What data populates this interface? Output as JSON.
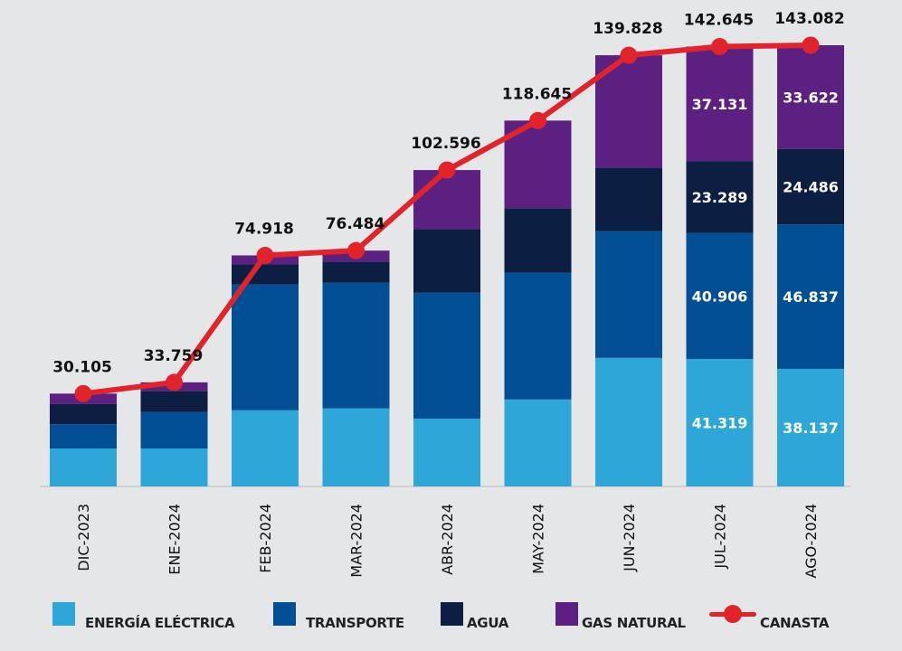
{
  "chart_data": {
    "type": "bar",
    "stacked": true,
    "title": "",
    "xlabel": "",
    "ylabel": "",
    "grid": false,
    "legend_position": "bottom",
    "categories": [
      "DIC-2023",
      "ENE-2024",
      "FEB-2024",
      "MAR-2024",
      "ABR-2024",
      "MAY-2024",
      "JUN-2024",
      "JUL-2024",
      "AGO-2024"
    ],
    "ylim": [
      0,
      143.082
    ],
    "series": [
      {
        "name": "ENERGÍA ELÉCTRICA",
        "type": "bar",
        "color": "#2ea7d8",
        "values": [
          12.3,
          12.3,
          24.7,
          25.3,
          22.0,
          28.2,
          41.7,
          41.319,
          38.137
        ],
        "labels": [
          null,
          null,
          null,
          null,
          null,
          null,
          null,
          "41.319",
          "38.137"
        ]
      },
      {
        "name": "TRANSPORTE",
        "type": "bar",
        "color": "#034f96",
        "values": [
          7.9,
          11.8,
          40.8,
          40.8,
          40.8,
          41.1,
          41.1,
          40.906,
          46.837
        ],
        "labels": [
          null,
          null,
          null,
          null,
          null,
          null,
          null,
          "40.906",
          "46.837"
        ]
      },
      {
        "name": "AGUA",
        "type": "bar",
        "color": "#0c1f43",
        "values": [
          6.5,
          6.8,
          6.5,
          6.8,
          20.6,
          20.9,
          20.6,
          23.289,
          24.486
        ],
        "labels": [
          null,
          null,
          null,
          null,
          null,
          null,
          null,
          "23.289",
          "24.486"
        ]
      },
      {
        "name": "GAS NATURAL",
        "type": "bar",
        "color": "#5c2180",
        "values": [
          3.405,
          2.859,
          2.918,
          3.584,
          19.196,
          28.445,
          36.428,
          37.131,
          33.622
        ],
        "labels": [
          null,
          null,
          null,
          null,
          null,
          null,
          null,
          "37.131",
          "33.622"
        ]
      },
      {
        "name": "CANASTA",
        "type": "line",
        "color": "#e1232b",
        "values": [
          30.105,
          33.759,
          74.918,
          76.484,
          102.596,
          118.645,
          139.828,
          142.645,
          143.082
        ],
        "labels": [
          "30.105",
          "33.759",
          "74.918",
          "76.484",
          "102.596",
          "118.645",
          "139.828",
          "142.645",
          "143.082"
        ]
      }
    ]
  },
  "legend": {
    "items": [
      {
        "label": "ENERGÍA ELÉCTRICA",
        "color": "#2ea7d8",
        "kind": "swatch"
      },
      {
        "label": "TRANSPORTE",
        "color": "#034f96",
        "kind": "swatch"
      },
      {
        "label": "AGUA",
        "color": "#0c1f43",
        "kind": "swatch"
      },
      {
        "label": "GAS NATURAL",
        "color": "#5c2180",
        "kind": "swatch"
      },
      {
        "label": "CANASTA",
        "color": "#e1232b",
        "kind": "line"
      }
    ]
  }
}
